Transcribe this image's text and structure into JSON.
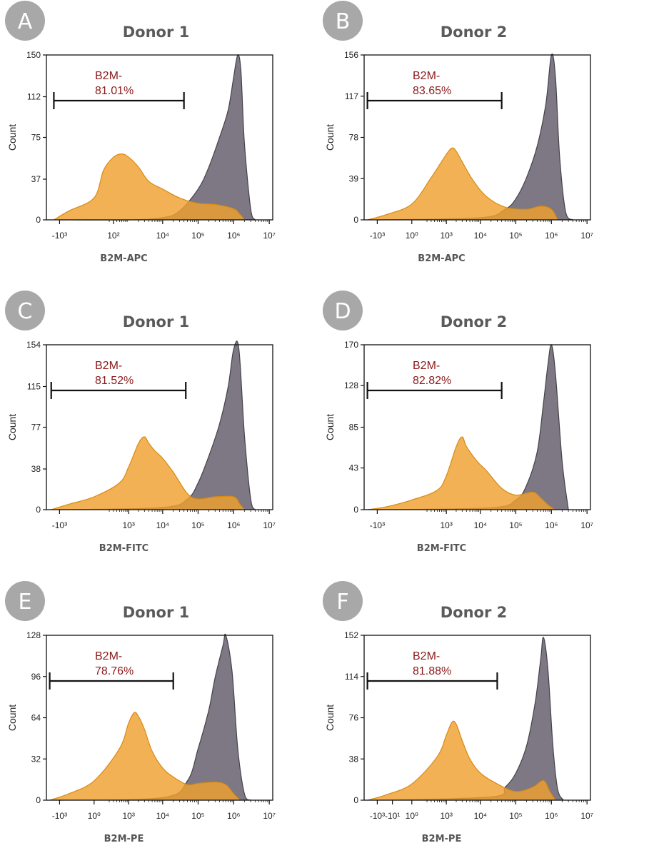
{
  "colors": {
    "control": "#f0a030",
    "control_edge": "#d88a10",
    "b2m": "#7d7883",
    "b2m_edge": "#45424a",
    "badge": "#a8a8a8",
    "gate_text": "#8b1a1a"
  },
  "chart_data": [
    {
      "type": "area",
      "panel": "A",
      "title": "Donor 1",
      "xlabel": "B2M-APC",
      "ylabel": "Count",
      "x_scale": "biexponential",
      "ylim": [
        0,
        150
      ],
      "yticks": [
        "0",
        "37",
        "75",
        "112",
        "150"
      ],
      "xticks": [
        "-10³",
        "10²",
        "10⁴",
        "10⁵",
        "10⁶",
        "10⁷"
      ],
      "gate": {
        "label": "B2M-",
        "percent": "81.01%",
        "x_from": -1500,
        "x_to": 40000
      },
      "series": [
        {
          "role": "b2m",
          "x": [
            -1000,
            1000,
            10000,
            30000,
            100000,
            200000,
            400000,
            700000,
            1000000,
            1300000,
            1600000,
            2000000,
            3000000,
            4000000
          ],
          "y": [
            0,
            0,
            2,
            8,
            28,
            48,
            75,
            100,
            130,
            150,
            135,
            70,
            10,
            0
          ]
        },
        {
          "role": "control",
          "x": [
            -1500,
            -500,
            0,
            100,
            300,
            600,
            1000,
            2000,
            4000,
            10000,
            30000,
            100000,
            300000,
            1000000,
            1500000,
            2000000
          ],
          "y": [
            0,
            8,
            20,
            45,
            57,
            60,
            57,
            48,
            35,
            28,
            20,
            15,
            14,
            10,
            5,
            0
          ]
        }
      ]
    },
    {
      "type": "area",
      "panel": "B",
      "title": "Donor 2",
      "xlabel": "B2M-APC",
      "ylabel": "Count",
      "x_scale": "biexponential",
      "ylim": [
        0,
        156
      ],
      "yticks": [
        "0",
        "39",
        "78",
        "117",
        "156"
      ],
      "xticks": [
        "-10³",
        "10⁰",
        "10³",
        "10⁴",
        "10⁵",
        "10⁶",
        "10⁷"
      ],
      "gate": {
        "label": "B2M-",
        "percent": "83.65%",
        "x_from": -2000,
        "x_to": 40000
      },
      "series": [
        {
          "role": "b2m",
          "x": [
            -1000,
            10000,
            50000,
            100000,
            200000,
            400000,
            700000,
            1000000,
            1300000,
            1700000,
            2500000,
            4000000
          ],
          "y": [
            0,
            2,
            10,
            20,
            40,
            70,
            110,
            156,
            135,
            60,
            8,
            0
          ]
        },
        {
          "role": "control",
          "x": [
            -2000,
            -500,
            0,
            300,
            1000,
            1500,
            2000,
            3000,
            6000,
            15000,
            50000,
            200000,
            500000,
            1000000,
            1500000
          ],
          "y": [
            0,
            5,
            15,
            40,
            62,
            68,
            65,
            55,
            38,
            22,
            12,
            10,
            13,
            10,
            0
          ]
        }
      ]
    },
    {
      "type": "area",
      "panel": "C",
      "title": "Donor 1",
      "xlabel": "B2M-FITC",
      "ylabel": "Count",
      "x_scale": "biexponential",
      "ylim": [
        0,
        154
      ],
      "yticks": [
        "0",
        "38",
        "77",
        "115",
        "154"
      ],
      "xticks": [
        "-10³",
        "10³",
        "10⁴",
        "10⁵",
        "10⁶",
        "10⁷"
      ],
      "gate": {
        "label": "B2M-",
        "percent": "81.52%",
        "x_from": -1800,
        "x_to": 45000
      },
      "series": [
        {
          "role": "b2m",
          "x": [
            -1000,
            10000,
            50000,
            100000,
            200000,
            400000,
            700000,
            1000000,
            1400000,
            2000000,
            3000000,
            4000000
          ],
          "y": [
            0,
            2,
            10,
            25,
            50,
            80,
            115,
            150,
            150,
            70,
            10,
            0
          ]
        },
        {
          "role": "control",
          "x": [
            -1800,
            -500,
            0,
            500,
            1000,
            2000,
            3000,
            4000,
            6000,
            10000,
            20000,
            50000,
            100000,
            300000,
            1000000,
            1500000,
            2000000
          ],
          "y": [
            0,
            5,
            12,
            25,
            40,
            62,
            68,
            62,
            55,
            48,
            35,
            15,
            10,
            12,
            12,
            5,
            0
          ]
        }
      ]
    },
    {
      "type": "area",
      "panel": "D",
      "title": "Donor 2",
      "xlabel": "B2M-FITC",
      "ylabel": "Count",
      "x_scale": "biexponential",
      "ylim": [
        0,
        170
      ],
      "yticks": [
        "0",
        "43",
        "85",
        "128",
        "170"
      ],
      "xticks": [
        "-10³",
        "10³",
        "10⁴",
        "10⁵",
        "10⁶",
        "10⁷"
      ],
      "gate": {
        "label": "B2M-",
        "percent": "82.82%",
        "x_from": -2000,
        "x_to": 40000
      },
      "series": [
        {
          "role": "b2m",
          "x": [
            -1000,
            20000,
            100000,
            200000,
            400000,
            600000,
            800000,
            1000000,
            1300000,
            2000000,
            3000000
          ],
          "y": [
            0,
            2,
            10,
            25,
            60,
            110,
            150,
            170,
            140,
            50,
            0
          ]
        },
        {
          "role": "control",
          "x": [
            -2000,
            -500,
            0,
            500,
            1000,
            2000,
            3000,
            4000,
            8000,
            15000,
            40000,
            100000,
            300000,
            500000,
            800000,
            1200000
          ],
          "y": [
            0,
            3,
            10,
            20,
            35,
            65,
            75,
            65,
            50,
            40,
            22,
            15,
            18,
            12,
            5,
            0
          ]
        }
      ]
    },
    {
      "type": "area",
      "panel": "E",
      "title": "Donor 1",
      "xlabel": "B2M-PE",
      "ylabel": "Count",
      "x_scale": "biexponential",
      "ylim": [
        0,
        128
      ],
      "yticks": [
        "0",
        "32",
        "64",
        "96",
        "128"
      ],
      "xticks": [
        "-10³",
        "10⁰",
        "10³",
        "10⁴",
        "10⁵",
        "10⁶",
        "10⁷"
      ],
      "gate": {
        "label": "B2M-",
        "percent": "78.76%",
        "x_from": -2000,
        "x_to": 20000
      },
      "series": [
        {
          "role": "b2m",
          "x": [
            -1000,
            10000,
            50000,
            100000,
            200000,
            300000,
            500000,
            600000,
            900000,
            1300000,
            2000000,
            3000000
          ],
          "y": [
            0,
            2,
            15,
            40,
            70,
            95,
            120,
            128,
            100,
            40,
            5,
            0
          ]
        },
        {
          "role": "control",
          "x": [
            -2000,
            -500,
            0,
            500,
            1000,
            1500,
            2000,
            3000,
            5000,
            10000,
            20000,
            50000,
            100000,
            300000,
            600000,
            1000000,
            1500000
          ],
          "y": [
            0,
            5,
            15,
            40,
            60,
            68,
            65,
            55,
            38,
            25,
            18,
            12,
            13,
            14,
            12,
            5,
            0
          ]
        }
      ]
    },
    {
      "type": "area",
      "panel": "F",
      "title": "Donor 2",
      "xlabel": "B2M-PE",
      "ylabel": "Count",
      "x_scale": "biexponential",
      "ylim": [
        0,
        152
      ],
      "yticks": [
        "0",
        "38",
        "76",
        "114",
        "152"
      ],
      "xticks": [
        "-10³",
        "-10¹",
        "10⁰",
        "10³",
        "10⁴",
        "10⁵",
        "10⁶",
        "10⁷"
      ],
      "gate": {
        "label": "B2M-",
        "percent": "81.88%",
        "x_from": -2000,
        "x_to": 30000
      },
      "series": [
        {
          "role": "b2m",
          "x": [
            -1000,
            20000,
            50000,
            100000,
            200000,
            350000,
            500000,
            600000,
            800000,
            1100000,
            1500000,
            2200000
          ],
          "y": [
            0,
            3,
            12,
            25,
            50,
            90,
            130,
            150,
            120,
            50,
            10,
            0
          ]
        },
        {
          "role": "control",
          "x": [
            -2000,
            -500,
            0,
            500,
            1000,
            1500,
            2000,
            3000,
            5000,
            10000,
            30000,
            100000,
            300000,
            600000,
            900000,
            1300000
          ],
          "y": [
            0,
            5,
            15,
            40,
            60,
            72,
            70,
            55,
            38,
            25,
            15,
            8,
            12,
            18,
            8,
            0
          ]
        }
      ]
    }
  ]
}
